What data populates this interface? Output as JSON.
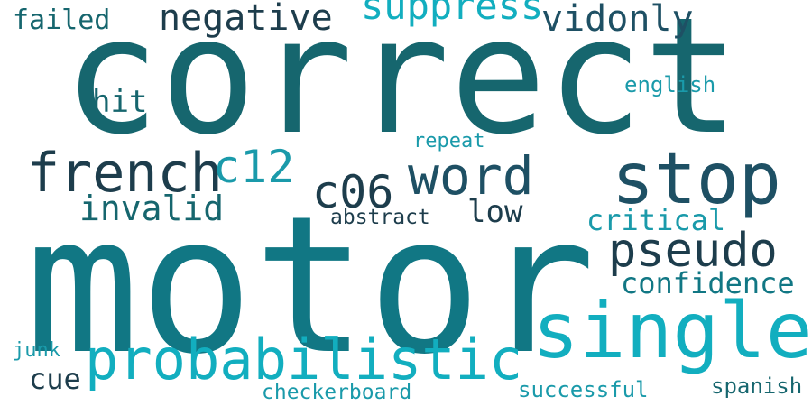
{
  "palette": {
    "dark": "#1d3d4c",
    "slate": "#1e5064",
    "teal_dark": "#16666e",
    "teal": "#117784",
    "cyan": "#1a9aaa",
    "cyan_light": "#12aebf"
  },
  "words": [
    {
      "key": "correct",
      "text": "correct",
      "color": "#16666e"
    },
    {
      "key": "motor",
      "text": "motor",
      "color": "#117784"
    },
    {
      "key": "single",
      "text": "single",
      "color": "#12aebf"
    },
    {
      "key": "stop",
      "text": "stop",
      "color": "#1e5064"
    },
    {
      "key": "probabilistic",
      "text": "probabilistic",
      "color": "#12aebf"
    },
    {
      "key": "french",
      "text": "french",
      "color": "#1d3d4c"
    },
    {
      "key": "word",
      "text": "word",
      "color": "#1e5064"
    },
    {
      "key": "pseudo",
      "text": "pseudo",
      "color": "#1d3d4c"
    },
    {
      "key": "c06",
      "text": "c06",
      "color": "#1d3d4c"
    },
    {
      "key": "c12",
      "text": "c12",
      "color": "#1a9aaa"
    },
    {
      "key": "negative",
      "text": "negative",
      "color": "#1d3d4c"
    },
    {
      "key": "vidonly",
      "text": "vidonly",
      "color": "#1e5064"
    },
    {
      "key": "suppress",
      "text": "suppress",
      "color": "#12aebf"
    },
    {
      "key": "invalid",
      "text": "invalid",
      "color": "#16666e"
    },
    {
      "key": "low",
      "text": "low",
      "color": "#1d3d4c"
    },
    {
      "key": "critical",
      "text": "critical",
      "color": "#1a9aaa"
    },
    {
      "key": "confidence",
      "text": "confidence",
      "color": "#117784"
    },
    {
      "key": "failed",
      "text": "failed",
      "color": "#16666e"
    },
    {
      "key": "hit",
      "text": "hit",
      "color": "#16666e"
    },
    {
      "key": "cue",
      "text": "cue",
      "color": "#1d3d4c"
    },
    {
      "key": "english",
      "text": "english",
      "color": "#1a9aaa"
    },
    {
      "key": "repeat",
      "text": "repeat",
      "color": "#1a9aaa"
    },
    {
      "key": "abstract",
      "text": "abstract",
      "color": "#1d3d4c"
    },
    {
      "key": "checkerboard",
      "text": "checkerboard",
      "color": "#1a9aaa"
    },
    {
      "key": "successful",
      "text": "successful",
      "color": "#1a9aaa"
    },
    {
      "key": "spanish",
      "text": "spanish",
      "color": "#16666e"
    },
    {
      "key": "junk",
      "text": "junk",
      "color": "#1a9aaa"
    }
  ]
}
